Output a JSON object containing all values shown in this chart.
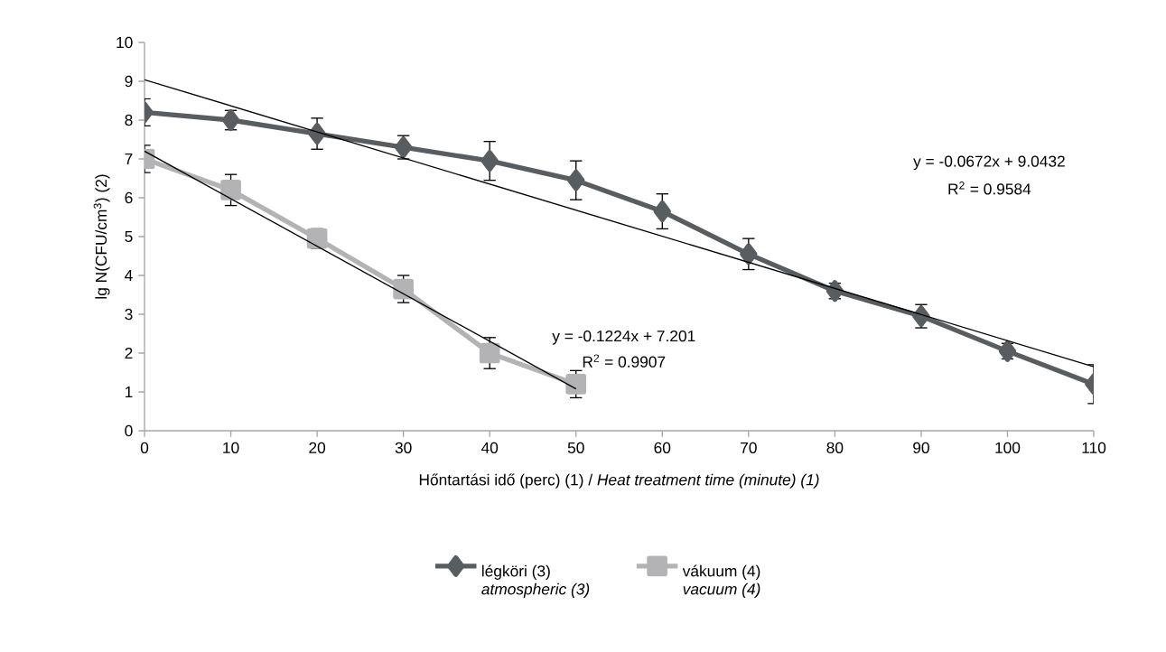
{
  "chart_data": {
    "type": "line",
    "xlabel": "Hőntartási idő (perc) (1) / *Heat treatment time (minute) (1)*",
    "ylabel": "lg N(CFU/cm$^{3}$) (2)",
    "x": [
      0,
      10,
      20,
      30,
      40,
      50,
      60,
      70,
      80,
      90,
      100,
      110
    ],
    "series": [
      {
        "name": "légköri (3) *atmospheric (3)*",
        "color": "#595d60",
        "marker": "diamond",
        "values": [
          8.2,
          8.0,
          7.65,
          7.3,
          6.95,
          6.45,
          5.65,
          4.55,
          3.6,
          2.95,
          2.05,
          1.2
        ],
        "errors": [
          0.35,
          0.25,
          0.4,
          0.3,
          0.5,
          0.5,
          0.45,
          0.4,
          0.2,
          0.3,
          0.2,
          0.5
        ]
      },
      {
        "name": "vákuum (4) *vacuum (4)*",
        "color": "#b3b3b5",
        "marker": "square",
        "x": [
          0,
          10,
          20,
          30,
          40,
          50
        ],
        "values": [
          7.0,
          6.2,
          4.95,
          3.65,
          2.0,
          1.2
        ],
        "errors": [
          0.35,
          0.4,
          0.25,
          0.35,
          0.4,
          0.35
        ]
      },
      {
        "type": "line",
        "color": "#000000",
        "marker": "none",
        "x": [
          0,
          110
        ],
        "values": [
          9.04,
          1.65
        ]
      },
      {
        "type": "line",
        "color": "#000000",
        "marker": "none",
        "x": [
          0,
          50
        ],
        "values": [
          7.2,
          1.08
        ]
      }
    ],
    "annotations": [
      "y =  -0.0672x + 9.0432",
      "R$^{2}$ = 0.9584",
      "y =  -0.1224x + 7.201",
      "R$^{2}$ = 0.9907"
    ],
    "xlim": [
      0,
      110
    ],
    "xticks": [
      0,
      10,
      20,
      30,
      40,
      50,
      60,
      70,
      80,
      90,
      100,
      110
    ],
    "ylim": [
      0,
      10
    ],
    "yticks": [
      0,
      1,
      2,
      3,
      4,
      5,
      6,
      7,
      8,
      9,
      10
    ],
    "grid": false,
    "legend": "bottom",
    "line_style": "solid"
  }
}
